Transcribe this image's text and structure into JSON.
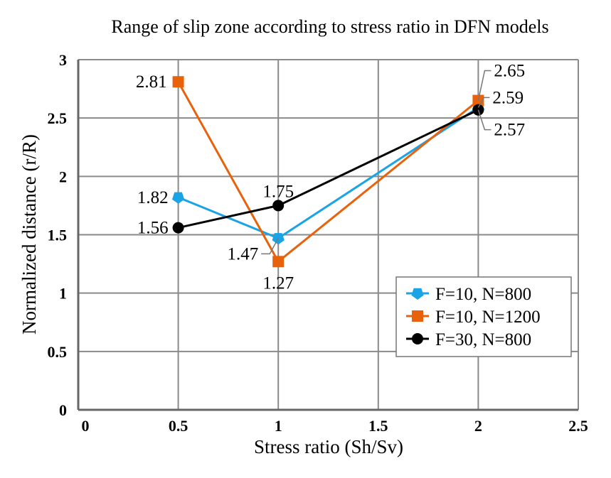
{
  "chart_data": {
    "type": "line",
    "title": "Range of slip zone according to stress ratio in DFN models",
    "xlabel": "Stress ratio (Sh/Sv)",
    "ylabel": "Normalized distance (r/R)",
    "xlim": [
      0,
      2.5
    ],
    "ylim": [
      0,
      3
    ],
    "xticks": [
      "0",
      "0.5",
      "1",
      "1.5",
      "2",
      "2.5"
    ],
    "yticks": [
      "0",
      "0.5",
      "1",
      "1.5",
      "2",
      "2.5",
      "3"
    ],
    "grid": true,
    "legend_position": "bottom-right",
    "x": [
      0.5,
      1,
      2
    ],
    "series": [
      {
        "name": "F=10, N=800",
        "values": [
          1.82,
          1.47,
          2.59
        ],
        "labels": [
          "1.82",
          "1.47",
          "2.59"
        ],
        "color": "#1aa3e6",
        "marker": "pentagon"
      },
      {
        "name": "F=10, N=1200",
        "values": [
          2.81,
          1.27,
          2.65
        ],
        "labels": [
          "2.81",
          "1.27",
          "2.65"
        ],
        "color": "#e8620c",
        "marker": "square"
      },
      {
        "name": "F=30, N=800",
        "values": [
          1.56,
          1.75,
          2.57
        ],
        "labels": [
          "1.56",
          "1.75",
          "2.57"
        ],
        "color": "#000000",
        "marker": "circle"
      }
    ]
  }
}
